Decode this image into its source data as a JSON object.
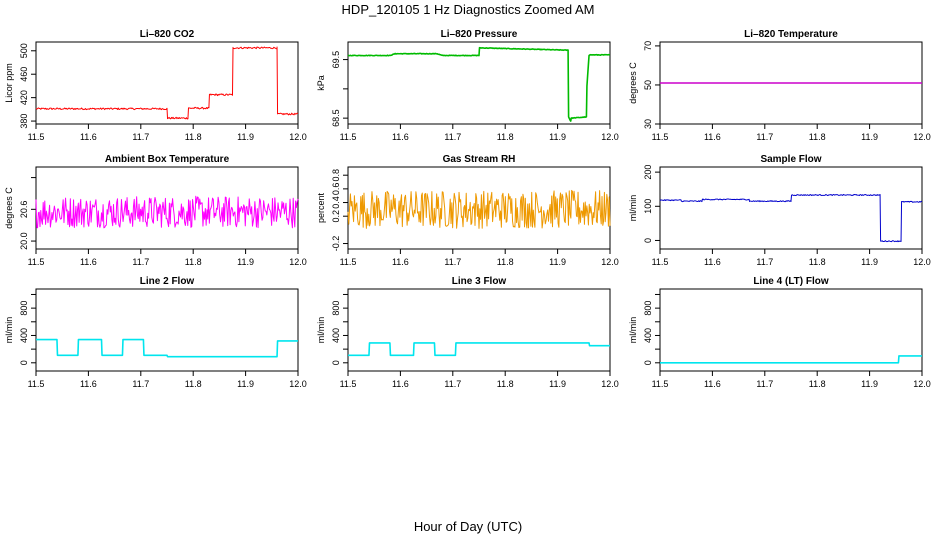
{
  "figure": {
    "title": "HDP_120105  1 Hz Diagnostics Zoomed AM",
    "xlabel": "Hour of Day (UTC)"
  },
  "chart_data": [
    {
      "type": "line",
      "title": "Li–820 CO2",
      "ylabel": "Licor ppm",
      "xlim": [
        11.5,
        12.0
      ],
      "xticks": [
        11.5,
        11.6,
        11.7,
        11.8,
        11.9,
        12.0
      ],
      "ylim": [
        375,
        515
      ],
      "yticks": [
        380,
        420,
        460,
        500
      ],
      "color": "#ff0000",
      "noise": 1.5,
      "series": [
        {
          "x": [
            11.5,
            11.75,
            11.751,
            11.79,
            11.791,
            11.83,
            11.831,
            11.875,
            11.876,
            11.96,
            11.961,
            12.0
          ],
          "y": [
            401,
            401,
            385,
            385,
            402,
            402,
            425,
            425,
            505,
            505,
            392,
            392
          ]
        }
      ]
    },
    {
      "type": "line",
      "title": "Li–820 Pressure",
      "ylabel": "kPa",
      "xlim": [
        11.5,
        12.0
      ],
      "xticks": [
        11.5,
        11.6,
        11.7,
        11.8,
        11.9,
        12.0
      ],
      "ylim": [
        68.4,
        69.8
      ],
      "yticks": [
        68.5,
        69.0,
        69.5
      ],
      "ytick_labels": [
        "68.5",
        "",
        "69.5"
      ],
      "color": "#00bb00",
      "noise": 0.005,
      "series": [
        {
          "x": [
            11.5,
            11.58,
            11.59,
            11.67,
            11.68,
            11.75,
            11.751,
            11.92,
            11.921,
            11.925,
            11.926,
            11.955,
            11.956,
            11.96,
            11.961,
            12.0
          ],
          "y": [
            69.57,
            69.57,
            69.6,
            69.6,
            69.57,
            69.57,
            69.7,
            69.66,
            68.52,
            68.45,
            68.5,
            68.52,
            69.05,
            69.57,
            69.58,
            69.58
          ]
        }
      ]
    },
    {
      "type": "line",
      "title": "Li–820 Temperature",
      "ylabel": "degrees C",
      "xlim": [
        11.5,
        12.0
      ],
      "xticks": [
        11.5,
        11.6,
        11.7,
        11.8,
        11.9,
        12.0
      ],
      "ylim": [
        30,
        72
      ],
      "yticks": [
        30,
        50,
        70
      ],
      "color": "#cc00cc",
      "noise": 0,
      "series": [
        {
          "x": [
            11.5,
            12.0
          ],
          "y": [
            51,
            51
          ]
        }
      ]
    },
    {
      "type": "line",
      "title": "Ambient Box Temperature",
      "ylabel": "degrees C",
      "xlim": [
        11.5,
        12.0
      ],
      "xticks": [
        11.5,
        11.6,
        11.7,
        11.8,
        11.9,
        12.0
      ],
      "ylim": [
        19.85,
        21.4
      ],
      "yticks": [
        20.0,
        20.6,
        21.2
      ],
      "ytick_labels": [
        "20.0",
        "20.6",
        ""
      ],
      "color": "#ff00ff",
      "noise": 0.3,
      "series": [
        {
          "x": [
            11.5,
            12.0
          ],
          "y": [
            20.55,
            20.55
          ]
        }
      ]
    },
    {
      "type": "line",
      "title": "Gas Stream RH",
      "ylabel": "percent",
      "xlim": [
        11.5,
        12.0
      ],
      "xticks": [
        11.5,
        11.6,
        11.7,
        11.8,
        11.9,
        12.0
      ],
      "ylim": [
        -0.28,
        0.92
      ],
      "yticks": [
        -0.2,
        0.2,
        0.4,
        0.6,
        0.8
      ],
      "color": "#ee9900",
      "noise": 0.28,
      "series": [
        {
          "x": [
            11.5,
            12.0
          ],
          "y": [
            0.3,
            0.3
          ]
        }
      ]
    },
    {
      "type": "line",
      "title": "Sample Flow",
      "ylabel": "ml/min",
      "xlim": [
        11.5,
        12.0
      ],
      "xticks": [
        11.5,
        11.6,
        11.7,
        11.8,
        11.9,
        12.0
      ],
      "ylim": [
        -25,
        215
      ],
      "yticks": [
        0,
        100,
        200
      ],
      "color": "#0000cc",
      "noise": 1.5,
      "series": [
        {
          "x": [
            11.5,
            11.54,
            11.541,
            11.58,
            11.581,
            11.67,
            11.671,
            11.75,
            11.751,
            11.92,
            11.921,
            11.96,
            11.961,
            12.0
          ],
          "y": [
            118,
            118,
            115,
            115,
            120,
            120,
            115,
            115,
            133,
            133,
            -2,
            -2,
            113,
            113
          ]
        }
      ]
    },
    {
      "type": "line",
      "title": "Line 2 Flow",
      "ylabel": "ml/min",
      "xlim": [
        11.5,
        12.0
      ],
      "xticks": [
        11.5,
        11.6,
        11.7,
        11.8,
        11.9,
        12.0
      ],
      "ylim": [
        -120,
        1080
      ],
      "yticks": [
        0,
        400,
        800
      ],
      "ytick_labels": [
        "0",
        "400",
        "800"
      ],
      "extra_ticks": [
        200,
        600,
        1000
      ],
      "color": "#00e5ee",
      "noise": 0,
      "series": [
        {
          "x": [
            11.5,
            11.54,
            11.541,
            11.58,
            11.581,
            11.625,
            11.626,
            11.665,
            11.666,
            11.705,
            11.706,
            11.75,
            11.751,
            11.96,
            11.961,
            12.0
          ],
          "y": [
            340,
            340,
            110,
            110,
            340,
            340,
            110,
            110,
            340,
            340,
            110,
            110,
            90,
            90,
            320,
            320
          ]
        }
      ]
    },
    {
      "type": "line",
      "title": "Line 3 Flow",
      "ylabel": "ml/min",
      "xlim": [
        11.5,
        12.0
      ],
      "xticks": [
        11.5,
        11.6,
        11.7,
        11.8,
        11.9,
        12.0
      ],
      "ylim": [
        -120,
        1080
      ],
      "yticks": [
        0,
        400,
        800
      ],
      "ytick_labels": [
        "0",
        "400",
        "800"
      ],
      "extra_ticks": [
        200,
        600,
        1000
      ],
      "color": "#00e5ee",
      "noise": 0,
      "series": [
        {
          "x": [
            11.5,
            11.54,
            11.541,
            11.58,
            11.581,
            11.625,
            11.626,
            11.665,
            11.666,
            11.705,
            11.706,
            11.96,
            11.961,
            12.0
          ],
          "y": [
            110,
            110,
            290,
            290,
            110,
            110,
            290,
            290,
            110,
            110,
            290,
            290,
            250,
            250
          ]
        }
      ]
    },
    {
      "type": "line",
      "title": "Line 4 (LT) Flow",
      "ylabel": "ml/min",
      "xlim": [
        11.5,
        12.0
      ],
      "xticks": [
        11.5,
        11.6,
        11.7,
        11.8,
        11.9,
        12.0
      ],
      "ylim": [
        -120,
        1080
      ],
      "yticks": [
        0,
        400,
        800
      ],
      "ytick_labels": [
        "0",
        "400",
        "800"
      ],
      "extra_ticks": [
        200,
        600,
        1000
      ],
      "color": "#00e5ee",
      "noise": 0,
      "series": [
        {
          "x": [
            11.5,
            11.955,
            11.956,
            12.0
          ],
          "y": [
            0,
            0,
            100,
            100
          ]
        }
      ]
    }
  ]
}
